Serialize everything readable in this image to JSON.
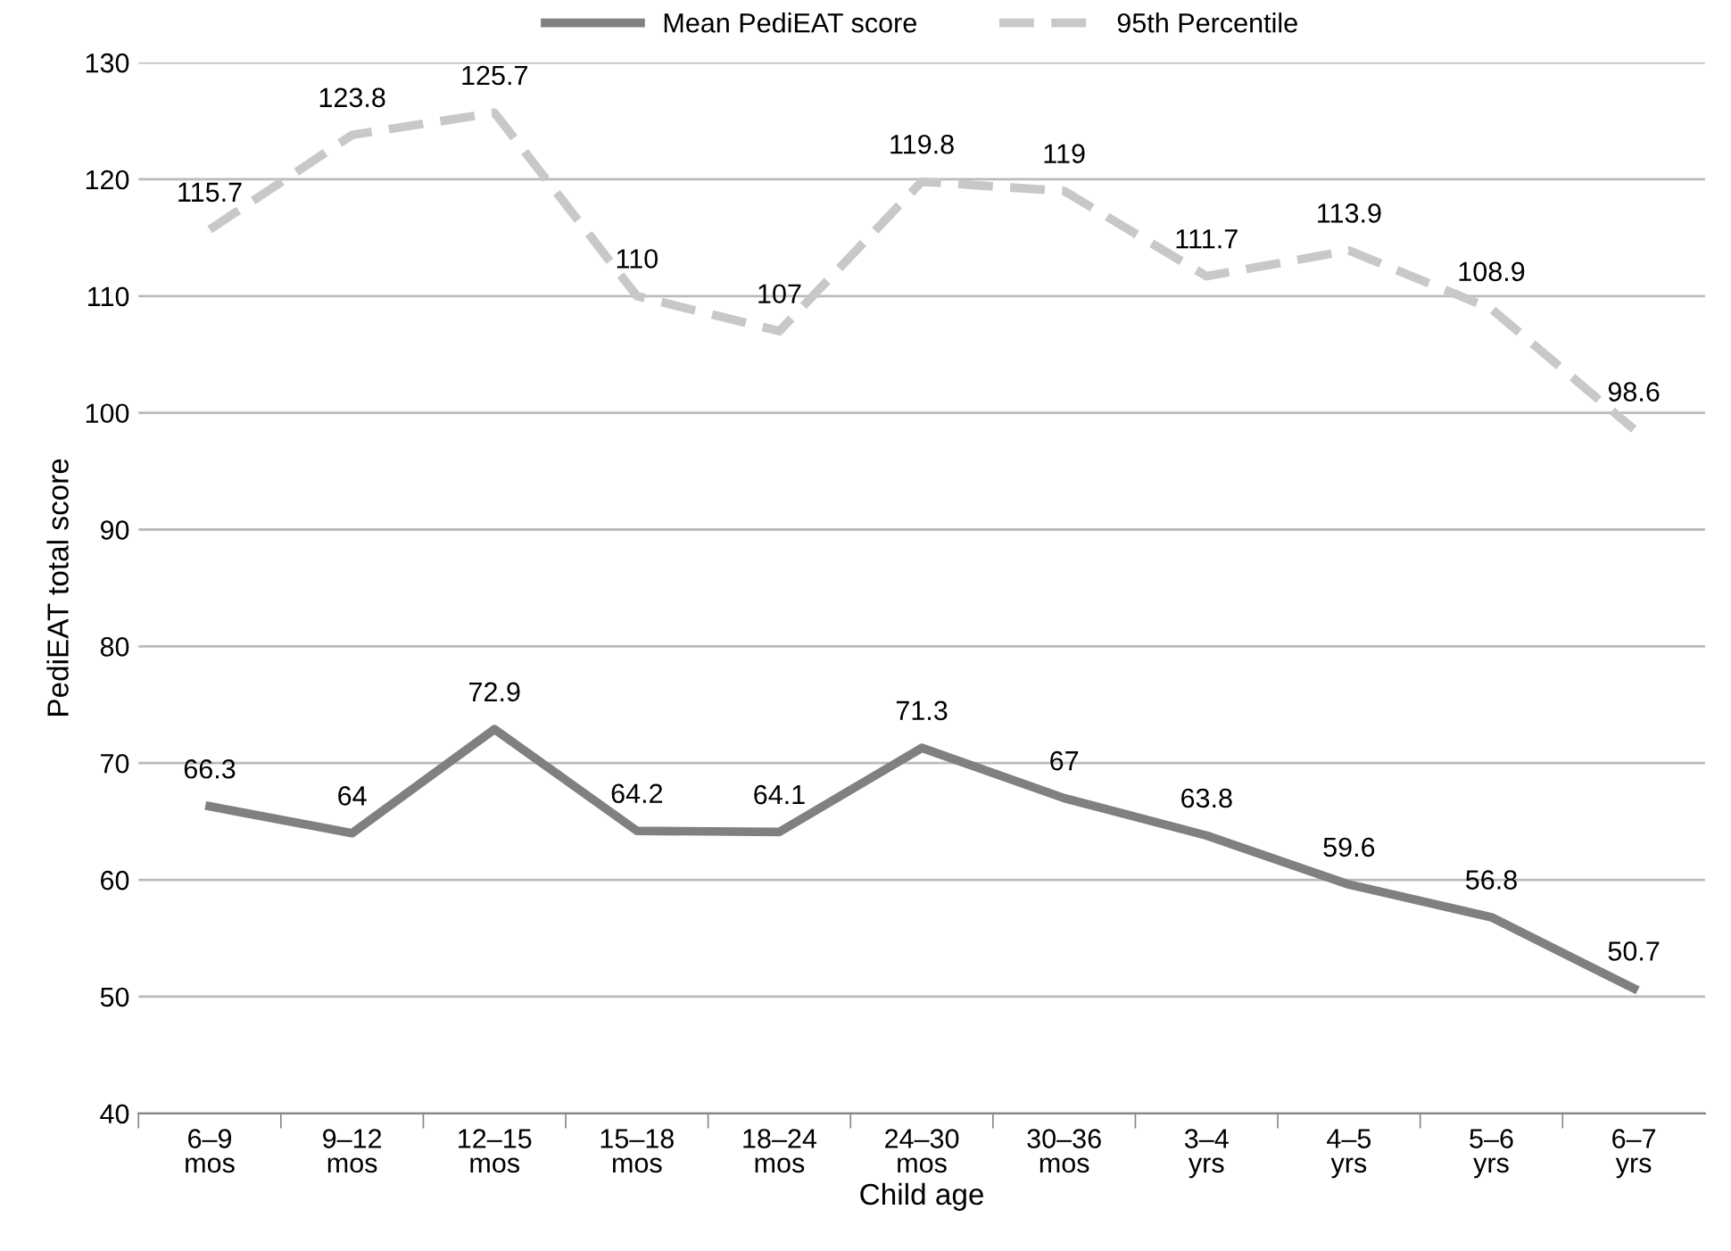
{
  "chart_data": {
    "type": "line",
    "xlabel": "Child age",
    "ylabel": "PediEAT total score",
    "categories": [
      "6–9\nmos",
      "9–12\nmos",
      "12–15\nmos",
      "15–18\nmos",
      "18–24\nmos",
      "24–30\nmos",
      "30–36\nmos",
      "3–4\nyrs",
      "4–5\nyrs",
      "5–6\nyrs",
      "6–7\nyrs"
    ],
    "series": [
      {
        "name": "Mean PediEAT score",
        "color": "#808080",
        "line_style": "solid",
        "values": [
          66.3,
          64,
          72.9,
          64.2,
          64.1,
          71.3,
          67,
          63.8,
          59.6,
          56.8,
          50.7
        ]
      },
      {
        "name": "95th Percentile",
        "color": "#c8c8c8",
        "line_style": "dashed",
        "values": [
          115.7,
          123.8,
          125.7,
          110,
          107,
          119.8,
          119,
          111.7,
          113.9,
          108.9,
          98.6
        ]
      }
    ],
    "ylim": [
      40,
      130
    ],
    "yticks": [
      40,
      50,
      60,
      70,
      80,
      90,
      100,
      110,
      120,
      130
    ],
    "grid": "y",
    "legend": "top",
    "marker": "none",
    "data_labels": true
  }
}
